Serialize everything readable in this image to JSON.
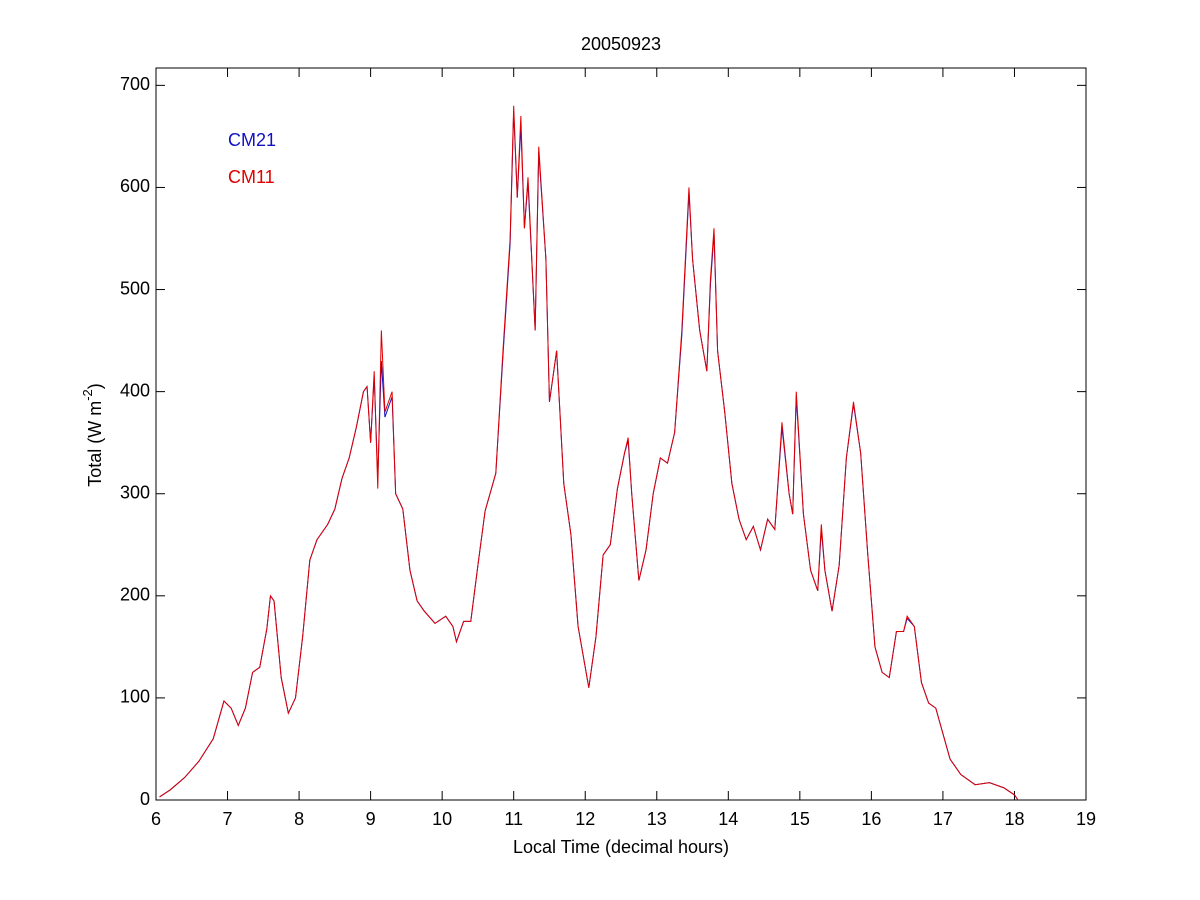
{
  "chart_data": {
    "type": "line",
    "title": "20050923",
    "xlabel": "Local Time (decimal hours)",
    "ylabel": {
      "text": "Total (W m",
      "superscript": "-2",
      "suffix": ")"
    },
    "legend": "upper left",
    "xlim": [
      6,
      19
    ],
    "xticks": [
      6,
      7,
      8,
      9,
      10,
      11,
      12,
      13,
      14,
      15,
      16,
      17,
      18,
      19
    ],
    "ylim": [
      0,
      717
    ],
    "yticks": [
      0,
      100,
      200,
      300,
      400,
      500,
      600,
      700
    ],
    "x": [
      6.05,
      6.2,
      6.4,
      6.6,
      6.8,
      6.95,
      7.05,
      7.15,
      7.25,
      7.35,
      7.45,
      7.55,
      7.6,
      7.65,
      7.75,
      7.85,
      7.95,
      8.05,
      8.15,
      8.25,
      8.4,
      8.5,
      8.6,
      8.7,
      8.8,
      8.9,
      8.95,
      9.0,
      9.05,
      9.1,
      9.15,
      9.2,
      9.3,
      9.35,
      9.45,
      9.55,
      9.65,
      9.75,
      9.9,
      10.05,
      10.15,
      10.2,
      10.3,
      10.4,
      10.5,
      10.6,
      10.75,
      10.85,
      10.95,
      11.0,
      11.05,
      11.1,
      11.15,
      11.2,
      11.3,
      11.35,
      11.45,
      11.5,
      11.6,
      11.7,
      11.8,
      11.9,
      12.05,
      12.15,
      12.25,
      12.35,
      12.45,
      12.55,
      12.6,
      12.65,
      12.75,
      12.85,
      12.95,
      13.05,
      13.15,
      13.25,
      13.35,
      13.45,
      13.5,
      13.6,
      13.7,
      13.75,
      13.8,
      13.85,
      13.95,
      14.05,
      14.15,
      14.25,
      14.35,
      14.45,
      14.55,
      14.65,
      14.75,
      14.85,
      14.9,
      14.95,
      15.05,
      15.15,
      15.25,
      15.3,
      15.35,
      15.45,
      15.55,
      15.65,
      15.75,
      15.85,
      15.95,
      16.05,
      16.15,
      16.25,
      16.35,
      16.45,
      16.5,
      16.6,
      16.7,
      16.8,
      16.9,
      17.0,
      17.1,
      17.25,
      17.45,
      17.65,
      17.85,
      18.0,
      18.05
    ],
    "series": [
      {
        "name": "CM21",
        "color": "#1010c0",
        "values": [
          3,
          10,
          22,
          38,
          60,
          97,
          90,
          73,
          90,
          125,
          130,
          168,
          200,
          195,
          120,
          85,
          100,
          160,
          235,
          255,
          270,
          285,
          315,
          335,
          365,
          400,
          405,
          350,
          415,
          315,
          430,
          375,
          395,
          300,
          285,
          225,
          195,
          185,
          173,
          180,
          170,
          155,
          175,
          175,
          230,
          283,
          320,
          435,
          545,
          675,
          590,
          660,
          560,
          605,
          460,
          635,
          530,
          390,
          440,
          310,
          260,
          170,
          110,
          160,
          240,
          250,
          305,
          340,
          352,
          300,
          215,
          245,
          300,
          335,
          330,
          360,
          455,
          595,
          530,
          460,
          420,
          505,
          555,
          440,
          380,
          310,
          275,
          255,
          268,
          245,
          275,
          265,
          365,
          300,
          280,
          395,
          280,
          225,
          205,
          265,
          225,
          185,
          230,
          335,
          388,
          340,
          240,
          150,
          125,
          120,
          165,
          165,
          178,
          170,
          115,
          95,
          90,
          65,
          40,
          25,
          15,
          17,
          12,
          5,
          0
        ]
      },
      {
        "name": "CM11",
        "color": "#e00000",
        "values": [
          3,
          10,
          22,
          38,
          60,
          97,
          90,
          73,
          90,
          125,
          130,
          168,
          200,
          195,
          120,
          85,
          100,
          160,
          235,
          255,
          270,
          285,
          315,
          335,
          365,
          400,
          405,
          350,
          420,
          305,
          460,
          380,
          400,
          300,
          285,
          225,
          195,
          185,
          173,
          180,
          170,
          155,
          175,
          175,
          230,
          283,
          320,
          440,
          550,
          680,
          590,
          670,
          560,
          610,
          460,
          640,
          530,
          390,
          440,
          310,
          260,
          170,
          110,
          160,
          240,
          250,
          305,
          340,
          355,
          300,
          215,
          245,
          300,
          335,
          330,
          360,
          460,
          600,
          530,
          460,
          420,
          510,
          560,
          440,
          380,
          310,
          275,
          255,
          268,
          245,
          275,
          265,
          370,
          300,
          280,
          400,
          280,
          225,
          205,
          270,
          225,
          185,
          230,
          335,
          390,
          340,
          240,
          150,
          125,
          120,
          165,
          165,
          180,
          170,
          115,
          95,
          90,
          65,
          40,
          25,
          15,
          17,
          12,
          5,
          0
        ]
      }
    ]
  }
}
